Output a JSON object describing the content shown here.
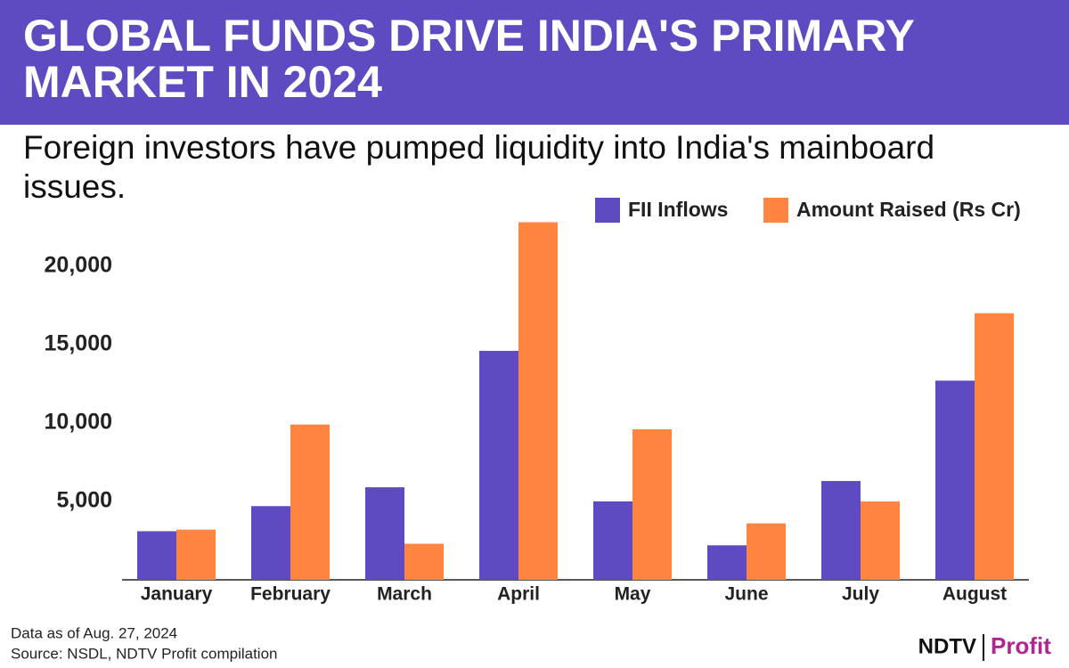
{
  "chart_data": {
    "type": "bar",
    "title": "GLOBAL FUNDS DRIVE INDIA'S PRIMARY MARKET IN 2024",
    "subtitle": "Foreign investors have pumped liquidity into India's mainboard issues.",
    "categories": [
      "January",
      "February",
      "March",
      "April",
      "May",
      "June",
      "July",
      "August"
    ],
    "series": [
      {
        "name": "FII Inflows",
        "color": "#5f4bc1",
        "values": [
          3100,
          4700,
          5900,
          14600,
          5000,
          2200,
          6300,
          12700
        ]
      },
      {
        "name": "Amount Raised (Rs Cr)",
        "color": "#ff8540",
        "values": [
          3200,
          9900,
          2300,
          22800,
          9600,
          3600,
          5000,
          17000
        ]
      }
    ],
    "ylim": [
      0,
      23000
    ],
    "yticks": [
      {
        "value": 5000,
        "label": "5,000"
      },
      {
        "value": 10000,
        "label": "10,000"
      },
      {
        "value": 15000,
        "label": "15,000"
      },
      {
        "value": 20000,
        "label": "20,000"
      }
    ],
    "grid": false,
    "legend": "top-right",
    "notes": [
      "Data as of Aug. 27, 2024",
      "Source: NSDL, NDTV Profit compilation"
    ],
    "brand": [
      "NDTV",
      "Profit"
    ]
  }
}
